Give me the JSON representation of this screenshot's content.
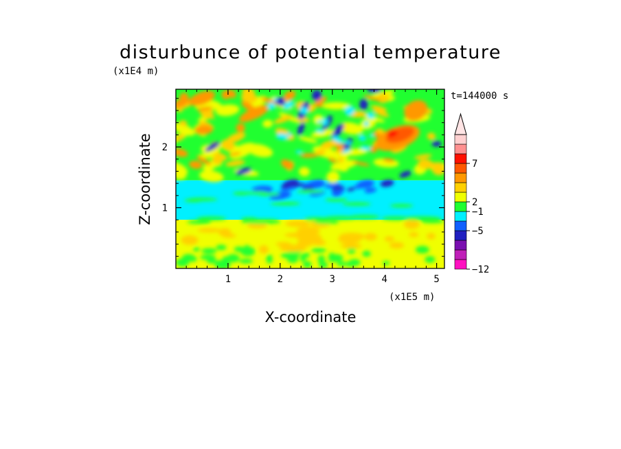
{
  "chart_data": {
    "type": "heatmap",
    "title": "disturbunce of potential temperature",
    "xlabel": "X-coordinate",
    "ylabel": "Z-coordinate",
    "x_unit": "(x1E5 m)",
    "y_unit": "(x1E4 m)",
    "time_label": "t=144000 s",
    "xlim": [
      0,
      5.15
    ],
    "ylim": [
      0,
      2.95
    ],
    "x_ticks": [
      "1",
      "2",
      "3",
      "4",
      "5"
    ],
    "y_ticks": [
      "1",
      "2"
    ],
    "colorbar": {
      "tick_labels": [
        "7",
        "2",
        "−1",
        "−5",
        "−12"
      ],
      "colors": [
        "#ff10c0",
        "#c020b8",
        "#7a10b0",
        "#2020c0",
        "#1060ff",
        "#00f0ff",
        "#20ff30",
        "#f0ff00",
        "#ffd000",
        "#ff9800",
        "#ff5800",
        "#ff1000",
        "#ff9090",
        "#ffd0d0"
      ],
      "extend_top_color": "#ffe4e4"
    },
    "field_summary": [
      {
        "x_range": [
          0,
          5.15
        ],
        "z_range": [
          0,
          0.8
        ],
        "value_level": "yellow (~0 to 1)"
      },
      {
        "x_range": [
          0,
          5.15
        ],
        "z_range": [
          0.8,
          1.45
        ],
        "value_level": "cyan (~-1)"
      },
      {
        "x_range": [
          0,
          5.15
        ],
        "z_range": [
          1.45,
          2.95
        ],
        "value_level": "mixed green/yellow/orange with blue anomalies"
      },
      {
        "x_range": [
          3.9,
          4.6
        ],
        "z_range": [
          1.9,
          2.5
        ],
        "value_level": "red maximum (~7)"
      },
      {
        "x_range": [
          1.8,
          3.6
        ],
        "z_range": [
          2.0,
          2.9
        ],
        "value_level": "blue minima (~-5)"
      }
    ]
  }
}
